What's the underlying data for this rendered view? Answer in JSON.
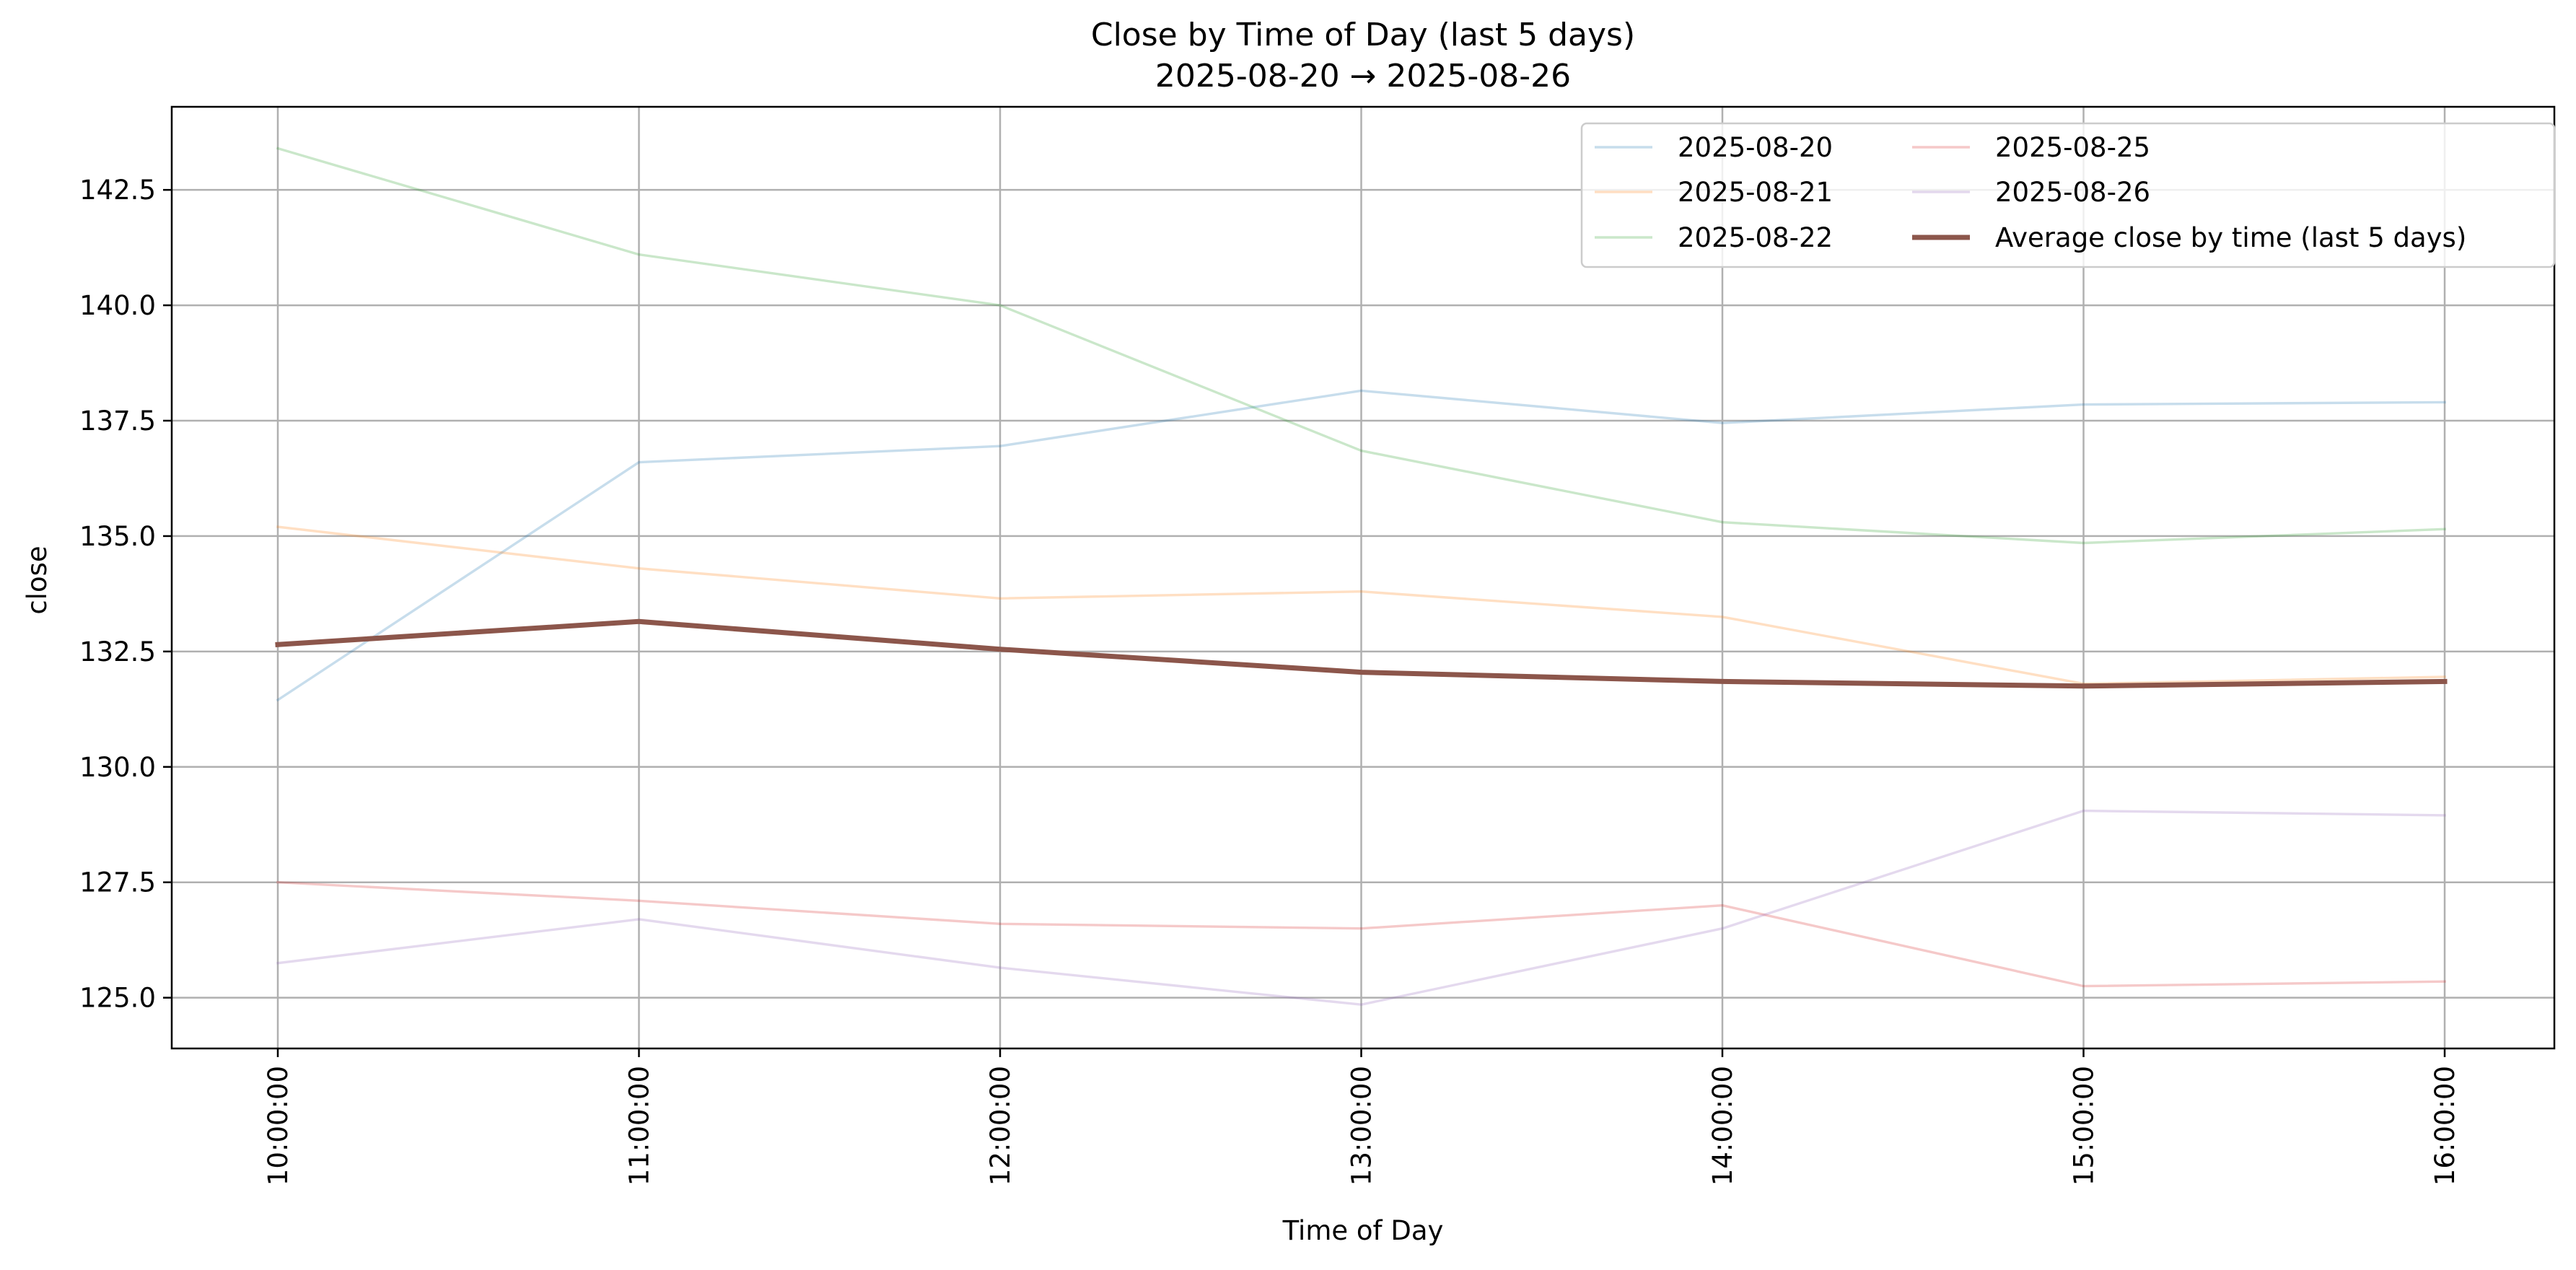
{
  "chart_data": {
    "type": "line",
    "title": "Close by Time of Day (last 5 days)",
    "subtitle": "2025-08-20 → 2025-08-26",
    "xlabel": "Time of Day",
    "ylabel": "close",
    "x": [
      "10:00:00",
      "11:00:00",
      "12:00:00",
      "13:00:00",
      "14:00:00",
      "15:00:00",
      "16:00:00"
    ],
    "ylim": [
      123.9,
      144.3
    ],
    "yticks": [
      "125.0",
      "127.5",
      "130.0",
      "132.5",
      "135.0",
      "137.5",
      "140.0",
      "142.5"
    ],
    "grid": true,
    "legend_position": "upper right",
    "series": [
      {
        "name": "2025-08-20",
        "color": "#1f77b4",
        "emphasis": false,
        "values": [
          131.45,
          136.6,
          136.95,
          138.15,
          137.45,
          137.85,
          137.9
        ]
      },
      {
        "name": "2025-08-21",
        "color": "#ff7f0e",
        "emphasis": false,
        "values": [
          135.2,
          134.3,
          133.65,
          133.8,
          133.25,
          131.8,
          131.95
        ]
      },
      {
        "name": "2025-08-22",
        "color": "#2ca02c",
        "emphasis": false,
        "values": [
          143.4,
          141.1,
          140.0,
          136.85,
          135.3,
          134.85,
          135.15
        ]
      },
      {
        "name": "2025-08-25",
        "color": "#d62728",
        "emphasis": false,
        "values": [
          127.5,
          127.1,
          126.6,
          126.5,
          127.0,
          125.25,
          125.35
        ]
      },
      {
        "name": "2025-08-26",
        "color": "#9467bd",
        "emphasis": false,
        "values": [
          125.75,
          126.7,
          125.65,
          124.85,
          126.5,
          129.05,
          128.95
        ]
      },
      {
        "name": "Average close by time (last 5 days)",
        "color": "#8c564b",
        "emphasis": true,
        "values": [
          132.65,
          133.15,
          132.55,
          132.05,
          131.85,
          131.75,
          131.85
        ]
      }
    ]
  }
}
